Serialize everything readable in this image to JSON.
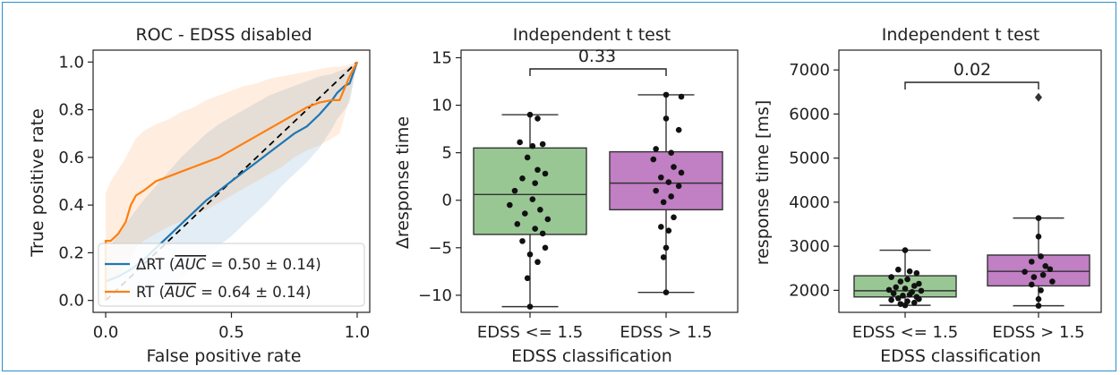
{
  "chart_data": [
    {
      "type": "line",
      "title": "ROC - EDSS disabled",
      "xlabel": "False positive rate",
      "ylabel": "True positive rate",
      "xlim": [
        -0.05,
        1.05
      ],
      "ylim": [
        -0.05,
        1.05
      ],
      "xticks": [
        "0.0",
        "0.5",
        "1.0"
      ],
      "yticks": [
        "0.0",
        "0.2",
        "0.4",
        "0.6",
        "0.8",
        "1.0"
      ],
      "legend_position": "bottom-right",
      "series": [
        {
          "name": "ΔRT (AUC = 0.50 ± 0.14)",
          "legend_main": "ΔRT (",
          "legend_over": "AUC",
          "legend_rest": " = 0.50 ± 0.14)",
          "color": "#1f77b4",
          "x": [
            0.0,
            0.0,
            0.05,
            0.1,
            0.15,
            0.2,
            0.25,
            0.3,
            0.35,
            0.4,
            0.45,
            0.5,
            0.55,
            0.6,
            0.65,
            0.7,
            0.75,
            0.8,
            0.85,
            0.9,
            0.92,
            0.95,
            0.97,
            1.0
          ],
          "y": [
            0.0,
            0.08,
            0.1,
            0.13,
            0.17,
            0.22,
            0.27,
            0.32,
            0.37,
            0.42,
            0.46,
            0.5,
            0.54,
            0.58,
            0.62,
            0.66,
            0.7,
            0.73,
            0.78,
            0.84,
            0.87,
            0.9,
            0.91,
            1.0
          ],
          "band_upper": [
            0.12,
            0.2,
            0.28,
            0.35,
            0.42,
            0.48,
            0.54,
            0.6,
            0.65,
            0.7,
            0.74,
            0.77,
            0.8,
            0.83,
            0.86,
            0.88,
            0.9,
            0.92,
            0.94,
            0.95,
            0.96,
            0.97,
            0.98,
            1.0
          ],
          "band_lower": [
            0.0,
            0.0,
            0.0,
            0.0,
            0.0,
            0.02,
            0.05,
            0.09,
            0.14,
            0.19,
            0.23,
            0.27,
            0.32,
            0.37,
            0.42,
            0.48,
            0.53,
            0.58,
            0.64,
            0.72,
            0.76,
            0.8,
            0.83,
            1.0
          ]
        },
        {
          "name": "RT (AUC = 0.64 ± 0.14)",
          "legend_main": "RT (",
          "legend_over": "AUC",
          "legend_rest": " = 0.64 ± 0.14)",
          "color": "#ff7f0e",
          "x": [
            0.0,
            0.0,
            0.02,
            0.05,
            0.08,
            0.1,
            0.12,
            0.15,
            0.2,
            0.25,
            0.3,
            0.35,
            0.4,
            0.45,
            0.5,
            0.55,
            0.6,
            0.65,
            0.7,
            0.75,
            0.8,
            0.85,
            0.9,
            0.93,
            0.97,
            1.0
          ],
          "y": [
            0.0,
            0.25,
            0.25,
            0.28,
            0.33,
            0.4,
            0.44,
            0.46,
            0.5,
            0.52,
            0.54,
            0.56,
            0.58,
            0.6,
            0.63,
            0.66,
            0.69,
            0.72,
            0.75,
            0.78,
            0.81,
            0.83,
            0.84,
            0.84,
            0.94,
            1.0
          ],
          "band_upper": [
            0.4,
            0.45,
            0.5,
            0.55,
            0.6,
            0.64,
            0.68,
            0.71,
            0.74,
            0.76,
            0.79,
            0.81,
            0.84,
            0.86,
            0.88,
            0.9,
            0.91,
            0.93,
            0.94,
            0.95,
            0.96,
            0.97,
            0.98,
            0.98,
            0.99,
            1.0
          ],
          "band_lower": [
            0.0,
            0.05,
            0.08,
            0.1,
            0.14,
            0.18,
            0.22,
            0.25,
            0.28,
            0.31,
            0.33,
            0.36,
            0.38,
            0.41,
            0.44,
            0.47,
            0.5,
            0.53,
            0.56,
            0.6,
            0.63,
            0.65,
            0.68,
            0.7,
            0.85,
            1.0
          ]
        }
      ],
      "diagonal": {
        "style": "dashed",
        "color": "#000000"
      }
    },
    {
      "type": "box",
      "title": "Independent t test",
      "xlabel": "EDSS classification",
      "ylabel": "Δresponse time",
      "ylim": [
        -11.8,
        15.8
      ],
      "yticks": [
        "−10",
        "−5",
        "0",
        "5",
        "10",
        "15"
      ],
      "categories": [
        "EDSS <= 1.5",
        "EDSS > 1.5"
      ],
      "annotation": "0.33",
      "boxes": [
        {
          "name": "EDSS <= 1.5",
          "color": "#99c794",
          "whisker_low": -11.2,
          "q1": -3.6,
          "median": 0.6,
          "q3": 5.5,
          "whisker_high": 9.0,
          "points": [
            9.0,
            8.6,
            6.1,
            5.9,
            5.7,
            4.5,
            3.2,
            2.8,
            2.3,
            1.8,
            1.0,
            0.1,
            -0.5,
            -1.0,
            -1.4,
            -2.0,
            -2.5,
            -3.0,
            -3.5,
            -4.3,
            -5.0,
            -5.7,
            -6.5,
            -8.2,
            -11.2
          ],
          "offsets": [
            0,
            0.3,
            -0.4,
            0.5,
            0.1,
            -0.1,
            0.3,
            0.6,
            -0.3,
            0.2,
            -0.6,
            0.1,
            -0.8,
            0.4,
            -0.2,
            0.7,
            -0.5,
            0.2,
            0.5,
            -0.3,
            0.6,
            0.0,
            0.3,
            -0.1,
            0.0
          ]
        },
        {
          "name": "EDSS > 1.5",
          "color": "#c17fc4",
          "whisker_low": -9.7,
          "q1": -1.0,
          "median": 1.8,
          "q3": 5.1,
          "whisker_high": 11.1,
          "points": [
            11.1,
            10.9,
            8.6,
            7.4,
            5.4,
            5.0,
            4.3,
            3.5,
            2.9,
            2.4,
            1.9,
            1.5,
            1.0,
            0.4,
            -0.2,
            -1.8,
            -2.8,
            -3.2,
            -5.0,
            -6.0,
            -9.7
          ],
          "offsets": [
            0,
            0.6,
            0.0,
            0.5,
            -0.4,
            0.2,
            -0.5,
            0.3,
            0.6,
            -0.2,
            0.1,
            0.5,
            -0.4,
            0.2,
            -0.1,
            0.3,
            -0.2,
            0.1,
            0.0,
            -0.1,
            0.0
          ]
        }
      ]
    },
    {
      "type": "box",
      "title": "Independent t test",
      "xlabel": "EDSS classification",
      "ylabel": "response time [ms]",
      "ylim": [
        1500,
        7450
      ],
      "yticks": [
        "2000",
        "3000",
        "4000",
        "5000",
        "6000",
        "7000"
      ],
      "categories": [
        "EDSS <= 1.5",
        "EDSS > 1.5"
      ],
      "annotation": "0.02",
      "boxes": [
        {
          "name": "EDSS <= 1.5",
          "color": "#99c794",
          "whisker_low": 1660,
          "q1": 1850,
          "median": 1990,
          "q3": 2330,
          "whisker_high": 2910,
          "points": [
            2910,
            2470,
            2430,
            2390,
            2300,
            2250,
            2200,
            2150,
            2100,
            2070,
            2040,
            2010,
            1990,
            1960,
            1930,
            1900,
            1880,
            1850,
            1820,
            1800,
            1780,
            1750,
            1720,
            1690,
            1660
          ],
          "offsets": [
            0,
            -0.3,
            0.2,
            0.5,
            -0.6,
            0.1,
            -0.2,
            0.6,
            0.4,
            -0.4,
            0.0,
            -0.7,
            0.7,
            0.3,
            -0.5,
            0.2,
            -0.1,
            0.5,
            -0.3,
            0.6,
            -0.6,
            0.1,
            0.4,
            -0.2,
            0.0
          ]
        },
        {
          "name": "EDSS > 1.5",
          "color": "#c17fc4",
          "whisker_low": 1650,
          "q1": 2100,
          "median": 2430,
          "q3": 2800,
          "whisker_high": 3640,
          "points": [
            3640,
            3220,
            2770,
            2650,
            2550,
            2480,
            2420,
            2350,
            2300,
            2200,
            2130,
            2000,
            1800,
            1650
          ],
          "offsets": [
            0,
            0.0,
            0.1,
            -0.3,
            0.3,
            0.5,
            -0.6,
            0.2,
            -0.2,
            0.6,
            -0.3,
            0.1,
            0.0,
            0.0
          ],
          "outliers": [
            6380
          ]
        }
      ]
    }
  ]
}
